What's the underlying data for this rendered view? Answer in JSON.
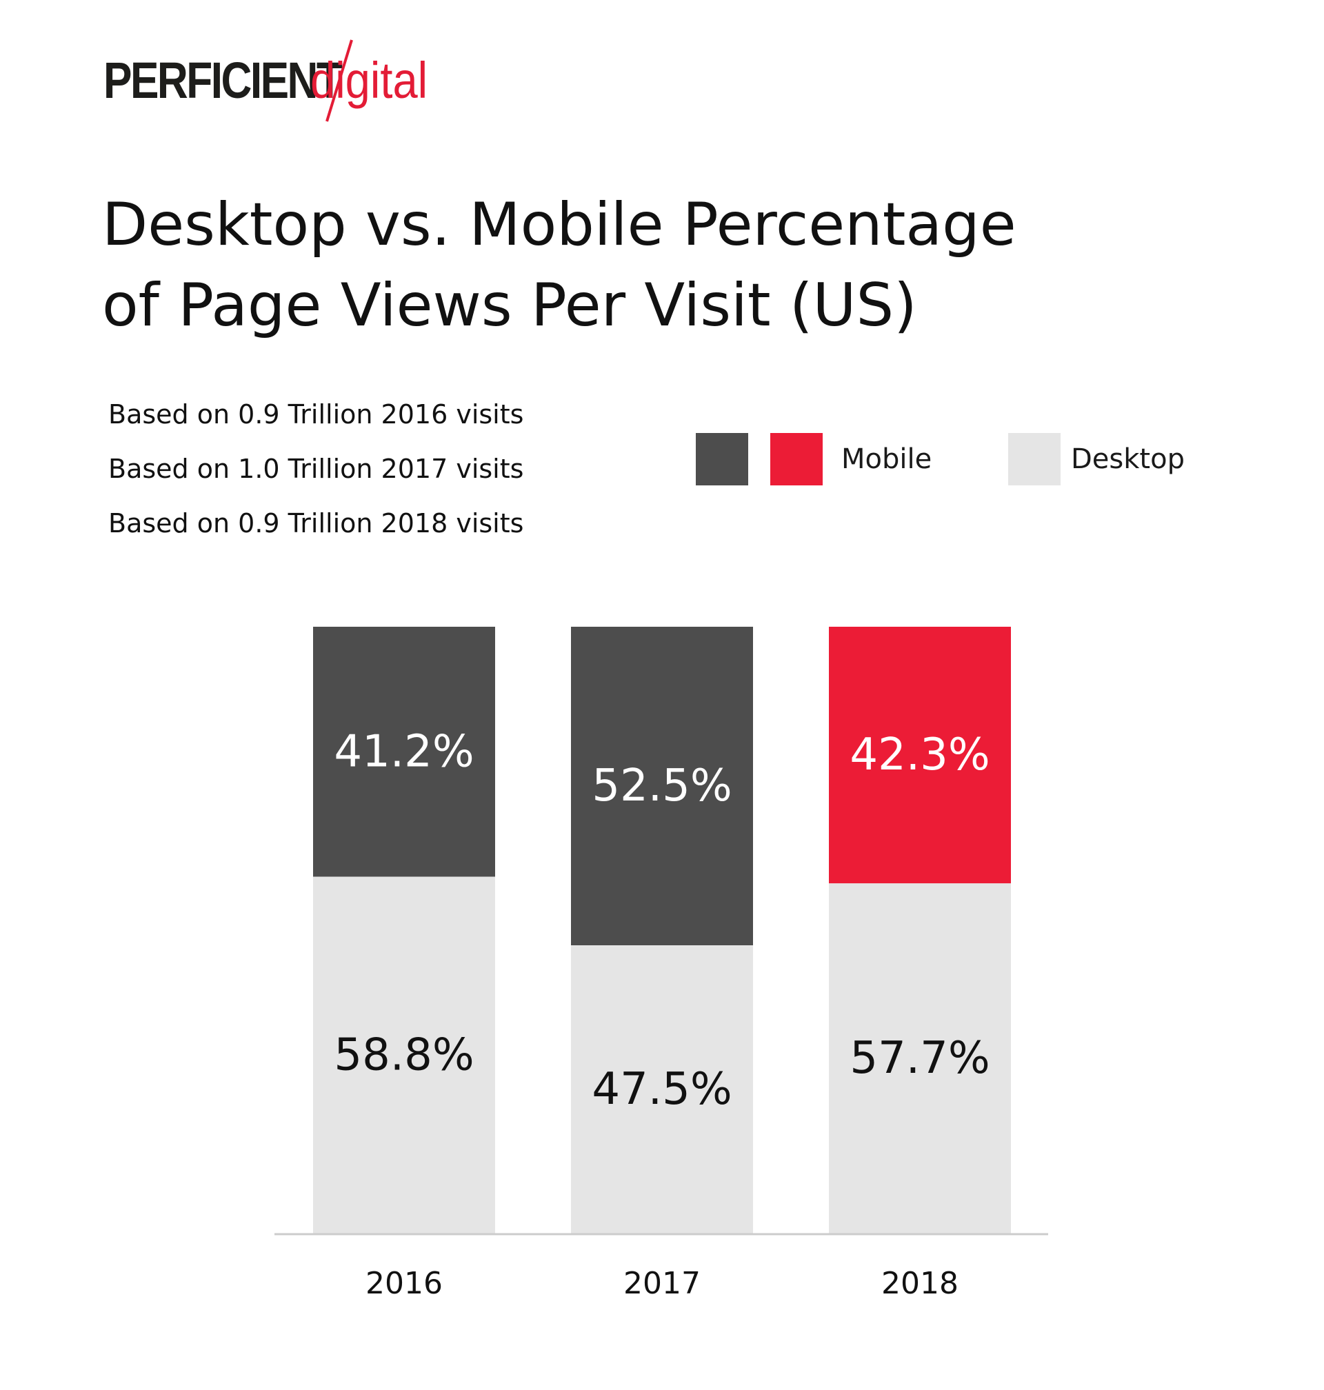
{
  "logo": {
    "primary": "PERFICIENT",
    "secondary": "digital"
  },
  "title_lines": [
    "Desktop vs. Mobile Percentage",
    "of Page Views Per Visit (US)"
  ],
  "notes": [
    "Based on 0.9 Trillion 2016 visits",
    "Based on 1.0 Trillion 2017 visits",
    "Based on 0.9 Trillion 2018 visits"
  ],
  "legend": {
    "mobile_label": "Mobile",
    "desktop_label": "Desktop"
  },
  "colors": {
    "mobile_dark": "#4d4d4d",
    "mobile_red": "#ec1c36",
    "desktop": "#e5e5e5",
    "axis": "#cccccc",
    "brand_red": "#e31c36",
    "text_dark": "#111111",
    "text_light": "#ffffff"
  },
  "chart_data": {
    "type": "bar",
    "stacked": true,
    "title": "Desktop vs. Mobile Percentage of Page Views Per Visit (US)",
    "categories": [
      "2016",
      "2017",
      "2018"
    ],
    "series": [
      {
        "name": "Mobile",
        "values": [
          41.2,
          52.5,
          42.3
        ],
        "labels": [
          "41.2%",
          "52.5%",
          "42.3%"
        ],
        "colors": [
          "#4d4d4d",
          "#4d4d4d",
          "#ec1c36"
        ]
      },
      {
        "name": "Desktop",
        "values": [
          58.8,
          47.5,
          57.7
        ],
        "labels": [
          "58.8%",
          "47.5%",
          "57.7%"
        ],
        "colors": [
          "#e5e5e5",
          "#e5e5e5",
          "#e5e5e5"
        ]
      }
    ],
    "xlabel": "",
    "ylabel": "",
    "ylim": [
      0,
      100
    ],
    "grid": false,
    "legend_position": "top-right"
  }
}
